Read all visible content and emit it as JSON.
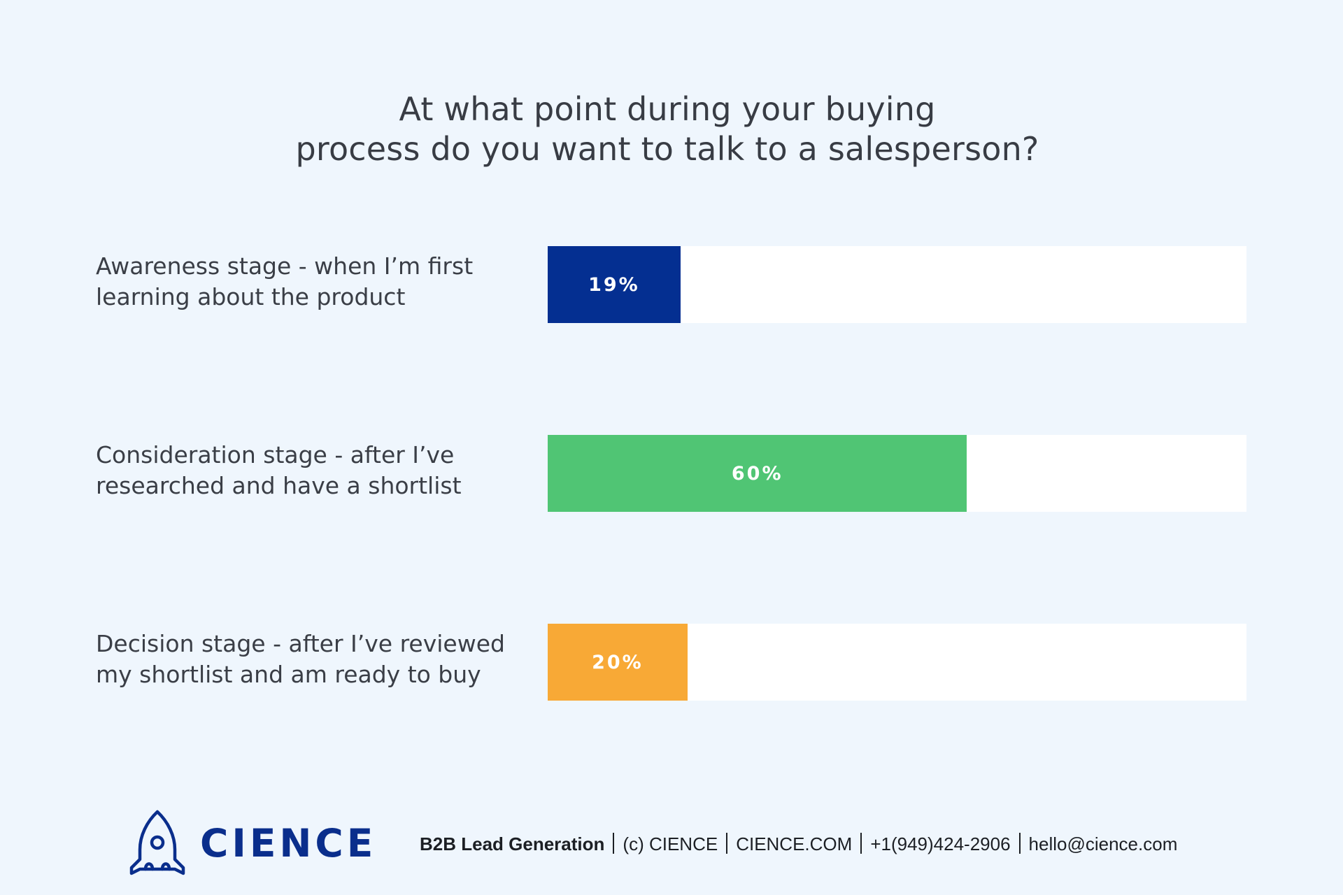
{
  "chart_data": {
    "type": "bar",
    "orientation": "horizontal",
    "title": "At what point during your buying process do you want to talk to a salesperson?",
    "title_lines": [
      "At what point during your buying",
      "process do you want to talk to a salesperson?"
    ],
    "xlim": [
      0,
      100
    ],
    "categories": [
      {
        "label_lines": [
          "Awareness stage - when I’m first",
          "learning about the product"
        ],
        "value": 19,
        "value_label": "19%",
        "color": "#042f91"
      },
      {
        "label_lines": [
          "Consideration stage - after I’ve",
          "researched and have a shortlist"
        ],
        "value": 60,
        "value_label": "60%",
        "color": "#50c574"
      },
      {
        "label_lines": [
          "Decision stage - after I’ve reviewed",
          "my shortlist and am ready to buy"
        ],
        "value": 20,
        "value_label": "20%",
        "color": "#f8a936"
      }
    ]
  },
  "footer": {
    "brand": "CIENCE",
    "brand_color": "#0a2e8c",
    "logo_icon": "rocket-icon",
    "tagline": "B2B Lead Generation",
    "copyright": "(c) CIENCE",
    "website": "CIENCE.COM",
    "phone": "+1(949)424-2906",
    "email": "hello@cience.com"
  }
}
